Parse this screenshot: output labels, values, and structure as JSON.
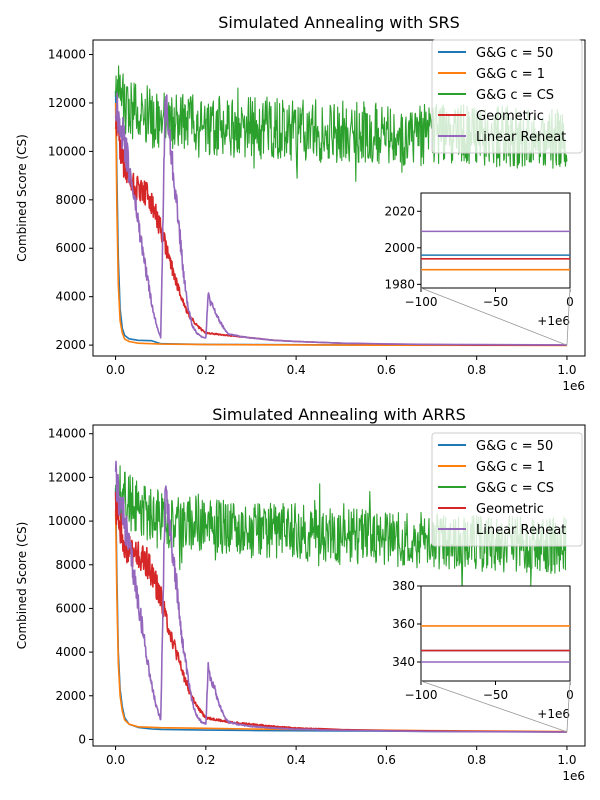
{
  "chart_data": [
    {
      "type": "line",
      "title": "Simulated Annealing with SRS",
      "xlabel": "",
      "ylabel": "Combined Score (CS)",
      "x_offset_label": "1e6",
      "xlim": [
        -0.05,
        1.04
      ],
      "ylim": [
        1550,
        14600
      ],
      "xticks": [
        0.0,
        0.2,
        0.4,
        0.6,
        0.8,
        1.0
      ],
      "xtick_labels": [
        "0.0",
        "0.2",
        "0.4",
        "0.6",
        "0.8",
        "1.0"
      ],
      "yticks": [
        2000,
        4000,
        6000,
        8000,
        10000,
        12000,
        14000
      ],
      "ytick_labels": [
        "2000",
        "4000",
        "6000",
        "8000",
        "10000",
        "12000",
        "14000"
      ],
      "legend_position": "top-right",
      "series": [
        {
          "name": "G&G c = 50",
          "color": "#1f77b4",
          "final": 1996,
          "x": [
            0,
            0.003,
            0.006,
            0.01,
            0.015,
            0.02,
            0.03,
            0.05,
            0.08,
            0.1,
            0.15,
            0.2,
            0.3,
            0.5,
            0.7,
            0.9,
            1.0
          ],
          "y": [
            12500,
            9000,
            5600,
            3500,
            2700,
            2400,
            2260,
            2200,
            2180,
            2060,
            2040,
            2030,
            2020,
            2010,
            2005,
            2000,
            1996
          ]
        },
        {
          "name": "G&G c = 1",
          "color": "#ff7f0e",
          "final": 1988,
          "x": [
            0,
            0.003,
            0.006,
            0.01,
            0.015,
            0.02,
            0.03,
            0.05,
            0.1,
            0.2,
            0.5,
            1.0
          ],
          "y": [
            12000,
            7600,
            4500,
            3000,
            2500,
            2250,
            2150,
            2080,
            2040,
            2020,
            2000,
            1988
          ]
        },
        {
          "name": "G&G c = CS",
          "color": "#2ca02c",
          "noisy": true,
          "amp": 1300,
          "x": [
            0,
            0.05,
            0.1,
            0.2,
            0.3,
            0.4,
            0.5,
            0.6,
            0.7,
            0.8,
            0.9,
            1.0
          ],
          "y": [
            12300,
            11600,
            11300,
            11100,
            11000,
            10900,
            10800,
            10700,
            10700,
            10600,
            10600,
            10600
          ]
        },
        {
          "name": "Geometric",
          "color": "#d62728",
          "final": 1994,
          "x": [
            0,
            0.01,
            0.02,
            0.03,
            0.05,
            0.07,
            0.08,
            0.1,
            0.12,
            0.14,
            0.16,
            0.18,
            0.2,
            0.25,
            0.3,
            0.35,
            0.4,
            0.5,
            0.6,
            0.7,
            0.8,
            1.0
          ],
          "y": [
            11500,
            10200,
            9300,
            8800,
            8500,
            8200,
            7800,
            6800,
            5500,
            4300,
            3300,
            2800,
            2500,
            2400,
            2300,
            2200,
            2150,
            2080,
            2040,
            2020,
            2000,
            1994
          ]
        },
        {
          "name": "Linear Reheat",
          "color": "#9467bd",
          "final": 2009,
          "x": [
            0,
            0.01,
            0.02,
            0.03,
            0.04,
            0.05,
            0.06,
            0.07,
            0.08,
            0.09,
            0.1,
            0.11,
            0.12,
            0.13,
            0.14,
            0.15,
            0.16,
            0.17,
            0.18,
            0.19,
            0.2,
            0.205,
            0.21,
            0.22,
            0.23,
            0.24,
            0.25,
            0.28,
            0.3,
            0.35,
            0.4,
            0.5,
            0.6,
            0.7,
            0.8,
            1.0
          ],
          "y": [
            12000,
            11200,
            10300,
            9300,
            8200,
            7100,
            5900,
            4800,
            3700,
            2900,
            2300,
            12000,
            10500,
            8800,
            7000,
            5000,
            3600,
            2800,
            2500,
            2350,
            2300,
            4100,
            3800,
            3400,
            3000,
            2700,
            2450,
            2350,
            2300,
            2200,
            2150,
            2080,
            2050,
            2030,
            2020,
            2009
          ]
        }
      ],
      "inset": {
        "xlim": [
          -100,
          0
        ],
        "ylim": [
          1978,
          2030
        ],
        "xticks": [
          -100,
          -50,
          0
        ],
        "xtick_labels": [
          "−100",
          "−50",
          "0"
        ],
        "yticks": [
          1980,
          2000,
          2020
        ],
        "ytick_labels": [
          "1980",
          "2000",
          "2020"
        ],
        "offset_label": "+1e6"
      }
    },
    {
      "type": "line",
      "title": "Simulated Annealing with ARRS",
      "xlabel": "",
      "ylabel": "Combined Score (CS)",
      "x_offset_label": "1e6",
      "xlim": [
        -0.05,
        1.04
      ],
      "ylim": [
        -300,
        14400
      ],
      "xticks": [
        0.0,
        0.2,
        0.4,
        0.6,
        0.8,
        1.0
      ],
      "xtick_labels": [
        "0.0",
        "0.2",
        "0.4",
        "0.6",
        "0.8",
        "1.0"
      ],
      "yticks": [
        0,
        2000,
        4000,
        6000,
        8000,
        10000,
        12000,
        14000
      ],
      "ytick_labels": [
        "0",
        "2000",
        "4000",
        "6000",
        "8000",
        "10000",
        "12000",
        "14000"
      ],
      "legend_position": "top-right",
      "series": [
        {
          "name": "G&G c = 50",
          "color": "#1f77b4",
          "final": 346,
          "x": [
            0,
            0.003,
            0.006,
            0.01,
            0.015,
            0.02,
            0.03,
            0.05,
            0.08,
            0.1,
            0.2,
            0.3,
            0.5,
            0.7,
            1.0
          ],
          "y": [
            11500,
            7500,
            4000,
            2300,
            1500,
            1000,
            700,
            550,
            480,
            460,
            430,
            410,
            390,
            370,
            346
          ]
        },
        {
          "name": "G&G c = 1",
          "color": "#ff7f0e",
          "final": 359,
          "x": [
            0,
            0.003,
            0.006,
            0.01,
            0.015,
            0.02,
            0.03,
            0.05,
            0.1,
            0.2,
            0.3,
            0.5,
            0.7,
            1.0
          ],
          "y": [
            10500,
            6500,
            3500,
            2000,
            1300,
            900,
            700,
            580,
            540,
            510,
            480,
            440,
            400,
            359
          ]
        },
        {
          "name": "G&G c = CS",
          "color": "#2ca02c",
          "noisy": true,
          "amp": 1300,
          "x": [
            0,
            0.05,
            0.1,
            0.2,
            0.3,
            0.4,
            0.5,
            0.6,
            0.7,
            0.8,
            0.9,
            1.0
          ],
          "y": [
            11500,
            10500,
            10100,
            9800,
            9600,
            9500,
            9300,
            9200,
            9100,
            9000,
            8900,
            8900
          ]
        },
        {
          "name": "Geometric",
          "color": "#d62728",
          "final": 346,
          "x": [
            0,
            0.01,
            0.02,
            0.03,
            0.05,
            0.07,
            0.08,
            0.1,
            0.12,
            0.14,
            0.16,
            0.18,
            0.2,
            0.25,
            0.3,
            0.35,
            0.4,
            0.5,
            0.6,
            0.7,
            0.8,
            1.0
          ],
          "y": [
            11000,
            9800,
            9000,
            8700,
            8400,
            8100,
            7600,
            6500,
            5000,
            3600,
            2400,
            1500,
            1000,
            800,
            700,
            600,
            520,
            450,
            410,
            390,
            370,
            346
          ]
        },
        {
          "name": "Linear Reheat",
          "color": "#9467bd",
          "final": 340,
          "x": [
            0,
            0.01,
            0.02,
            0.03,
            0.04,
            0.05,
            0.06,
            0.07,
            0.08,
            0.09,
            0.1,
            0.11,
            0.12,
            0.13,
            0.14,
            0.15,
            0.16,
            0.17,
            0.18,
            0.19,
            0.2,
            0.205,
            0.21,
            0.22,
            0.23,
            0.24,
            0.25,
            0.28,
            0.3,
            0.35,
            0.4,
            0.5,
            0.6,
            0.7,
            0.8,
            1.0
          ],
          "y": [
            11800,
            10900,
            9900,
            8800,
            7600,
            6300,
            5000,
            3700,
            2500,
            1500,
            900,
            11500,
            9800,
            8000,
            6000,
            4200,
            2800,
            1700,
            1100,
            800,
            700,
            3300,
            2900,
            2300,
            1600,
            1100,
            800,
            650,
            600,
            520,
            470,
            420,
            390,
            370,
            355,
            340
          ]
        }
      ],
      "inset": {
        "xlim": [
          -100,
          0
        ],
        "ylim": [
          330,
          380
        ],
        "xticks": [
          -100,
          -50,
          0
        ],
        "xtick_labels": [
          "−100",
          "−50",
          "0"
        ],
        "yticks": [
          340,
          360,
          380
        ],
        "ytick_labels": [
          "340",
          "360",
          "380"
        ],
        "offset_label": "+1e6"
      }
    }
  ]
}
